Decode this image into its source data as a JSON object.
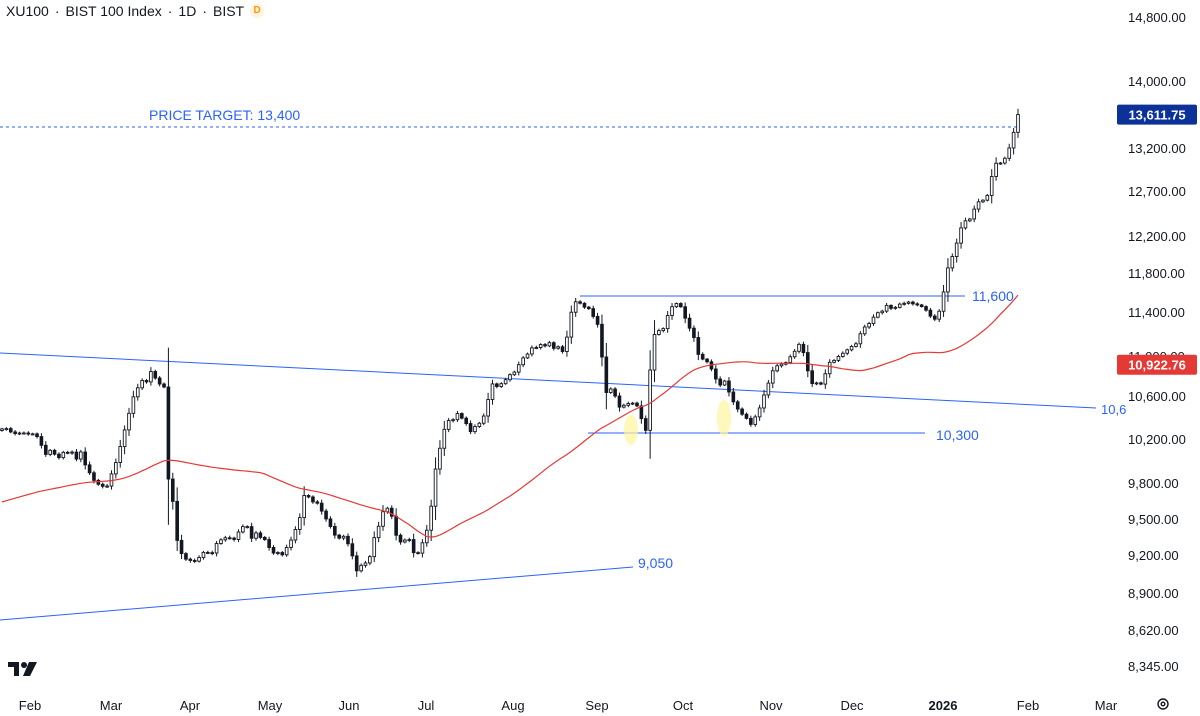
{
  "header": {
    "symbol": "XU100",
    "name": "BIST 100 Index",
    "interval": "1D",
    "exchange": "BIST",
    "badge": "D"
  },
  "icons": {
    "logo": "tradingview-logo-icon",
    "settings": "gear-icon"
  },
  "colors": {
    "up": "#131722",
    "down": "#131722",
    "ma": "#e53935",
    "lines": "#2962ff",
    "last_price_bg": "#0c3299",
    "ma_bg": "#e53935"
  },
  "chart_data": {
    "type": "candlestick",
    "title": "XU100 · BIST 100 Index · 1D · BIST",
    "x_ticks": [
      "Feb",
      "Mar",
      "Apr",
      "May",
      "Jun",
      "Jul",
      "Aug",
      "Sep",
      "Oct",
      "Nov",
      "Dec",
      "2026",
      "Feb",
      "Mar"
    ],
    "y_ticks": [
      "14,800.00",
      "14,000.00",
      "13,200.00",
      "12,700.00",
      "12,200.00",
      "11,800.00",
      "11,400.00",
      "11,000.00",
      "10,600.00",
      "10,200.00",
      "9,800.00",
      "9,500.00",
      "9,200.00",
      "8,900.00",
      "8,620.00",
      "8,345.00"
    ],
    "last_price": "13,611.75",
    "ma_value": "10,922.76",
    "annotations": {
      "price_target": "PRICE TARGET: 13,400",
      "resistance": "11,600",
      "support": "10,300",
      "lower_trend": "9,050",
      "upper_trend": "10,6"
    },
    "closes": [
      10303,
      10306,
      10275,
      10260,
      10265,
      10265,
      10256,
      10257,
      10232,
      10152,
      10069,
      10106,
      10071,
      10040,
      10088,
      10081,
      10090,
      10027,
      10091,
      9974,
      9902,
      9833,
      9798,
      9781,
      9783,
      9892,
      9995,
      10140,
      10294,
      10448,
      10602,
      10692,
      10765,
      10751,
      10855,
      10790,
      10730,
      10700,
      9845,
      9655,
      9330,
      9220,
      9175,
      9165,
      9159,
      9188,
      9230,
      9228,
      9225,
      9304,
      9335,
      9352,
      9349,
      9338,
      9400,
      9445,
      9445,
      9348,
      9392,
      9355,
      9337,
      9271,
      9225,
      9229,
      9210,
      9271,
      9333,
      9421,
      9520,
      9704,
      9692,
      9651,
      9640,
      9574,
      9509,
      9446,
      9374,
      9349,
      9364,
      9302,
      9201,
      9083,
      9126,
      9145,
      9195,
      9353,
      9448,
      9569,
      9598,
      9531,
      9373,
      9317,
      9333,
      9337,
      9228,
      9224,
      9310,
      9415,
      9615,
      9936,
      10125,
      10299,
      10381,
      10389,
      10446,
      10403,
      10353,
      10278,
      10325,
      10356,
      10423,
      10577,
      10731,
      10705,
      10733,
      10773,
      10823,
      10849,
      10923,
      10991,
      11027,
      11083,
      11086,
      11113,
      11101,
      11130,
      11079,
      11093,
      11050,
      11181,
      11408,
      11515,
      11500,
      11460,
      11445,
      11369,
      11297,
      11000,
      10645,
      10680,
      10610,
      10506,
      10523,
      10539,
      10543,
      10517,
      10399,
      10290,
      10870,
      11205,
      11240,
      11258,
      11377,
      11465,
      11497,
      11464,
      11353,
      11262,
      11177,
      11024,
      10979,
      10952,
      10880,
      10780,
      10720,
      10760,
      10650,
      10555,
      10488,
      10440,
      10401,
      10345,
      10415,
      10498,
      10620,
      10739,
      10862,
      10912,
      10929,
      10944,
      11002,
      11052,
      11115,
      11040,
      10862,
      10734,
      10741,
      10729,
      10833,
      10947,
      10966,
      11005,
      11034,
      11065,
      11096,
      11120,
      11211,
      11273,
      11304,
      11362,
      11403,
      11419,
      11478,
      11448,
      11458,
      11491,
      11499,
      11512,
      11494,
      11483,
      11466,
      11429,
      11372,
      11344,
      11418,
      11616,
      11866,
      11989,
      12134,
      12301,
      12380,
      12400,
      12510,
      12591,
      12609,
      12662,
      12880,
      13034,
      13037,
      13092,
      13212,
      13399,
      13611
    ]
  }
}
